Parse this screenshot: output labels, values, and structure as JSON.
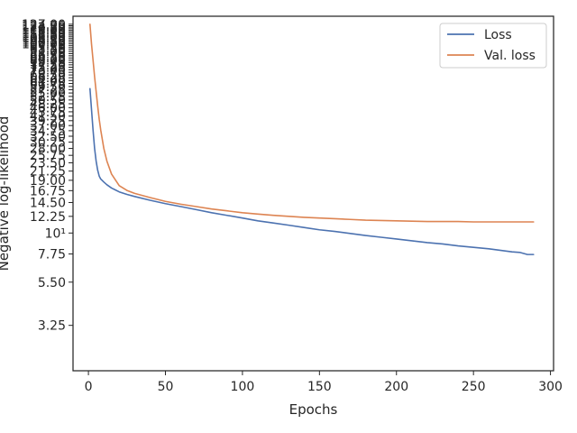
{
  "chart_data": {
    "type": "line",
    "title": "",
    "xlabel": "Epochs",
    "ylabel": "Negative log-likelihood",
    "xlim": [
      -10,
      302
    ],
    "ylim": [
      1.87,
      140
    ],
    "yscale": "log",
    "grid": false,
    "legend_position": "top-right",
    "x_ticks": [
      0,
      50,
      100,
      150,
      200,
      250,
      300
    ],
    "x_tick_labels": [
      "0",
      "50",
      "100",
      "150",
      "200",
      "250",
      "300"
    ],
    "y_ticks": [
      3.25,
      5.5,
      7.75,
      10,
      12.25,
      14.5,
      16.75,
      19.0,
      21.25,
      23.5,
      25.75,
      28.0,
      30.25,
      32.5,
      34.75,
      37.0,
      39.25,
      41.5,
      43.75,
      46.0,
      48.25,
      50.5,
      52.75,
      55.0,
      57.25,
      59.5,
      61.75,
      64.0,
      66.25,
      68.5,
      70.75,
      73.0,
      75.25,
      77.5,
      79.75,
      82.0,
      84.25,
      86.5,
      88.75,
      91.0,
      93.25,
      95.5,
      97.75,
      100.0,
      102.25,
      104.5,
      106.75,
      109.0,
      111.25,
      113.5,
      115.75,
      118.0,
      120.25,
      122.5,
      124.75,
      127.0
    ],
    "y_tick_labels": [
      "3.25",
      "5.50",
      "7.75",
      "10¹",
      "12.25",
      "14.50",
      "16.75",
      "19.00",
      "21.25",
      "23.50",
      "25.75",
      "28.00",
      "30.25",
      "32.50",
      "34.75",
      "37.00",
      "39.25",
      "41.50",
      "43.75",
      "46.00",
      "48.25",
      "50.50",
      "52.75",
      "55.00",
      "57.25",
      "59.50",
      "61.75",
      "64.00",
      "66.25",
      "68.50",
      "70.75",
      "73.00",
      "75.25",
      "77.50",
      "79.75",
      "82.00",
      "84.25",
      "86.50",
      "88.75",
      "91.00",
      "93.25",
      "95.50",
      "97.75",
      "100.00",
      "102.25",
      "104.50",
      "106.75",
      "109.00",
      "111.25",
      "113.50",
      "115.75",
      "118.00",
      "120.25",
      "122.50",
      "124.75",
      "127.00"
    ],
    "series": [
      {
        "name": "Loss",
        "color": "#4c72b0",
        "x": [
          1,
          2,
          3,
          4,
          5,
          6,
          7,
          8,
          10,
          12,
          15,
          20,
          25,
          30,
          40,
          50,
          60,
          70,
          80,
          90,
          100,
          110,
          120,
          130,
          140,
          150,
          160,
          170,
          180,
          190,
          200,
          210,
          220,
          230,
          240,
          250,
          260,
          270,
          275,
          280,
          285,
          289
        ],
        "y": [
          58,
          45,
          35,
          28,
          24,
          21.5,
          20,
          19.3,
          18.6,
          18.0,
          17.3,
          16.5,
          16.0,
          15.6,
          14.9,
          14.3,
          13.8,
          13.3,
          12.8,
          12.4,
          12.0,
          11.6,
          11.3,
          11.0,
          10.7,
          10.4,
          10.2,
          9.95,
          9.7,
          9.5,
          9.3,
          9.1,
          8.9,
          8.75,
          8.55,
          8.4,
          8.25,
          8.05,
          7.95,
          7.9,
          7.7,
          7.7
        ]
      },
      {
        "name": "Val. loss",
        "color": "#dd8452",
        "x": [
          1,
          2,
          3,
          4,
          5,
          6,
          7,
          8,
          10,
          12,
          15,
          20,
          25,
          30,
          40,
          50,
          60,
          70,
          80,
          90,
          100,
          110,
          120,
          130,
          140,
          150,
          160,
          170,
          180,
          190,
          200,
          210,
          220,
          230,
          240,
          250,
          260,
          270,
          280,
          289
        ],
        "y": [
          127,
          100,
          82,
          67,
          56,
          47,
          40,
          35,
          28,
          24,
          20.5,
          17.8,
          16.8,
          16.2,
          15.4,
          14.7,
          14.2,
          13.8,
          13.4,
          13.1,
          12.8,
          12.6,
          12.4,
          12.25,
          12.1,
          12.0,
          11.9,
          11.8,
          11.7,
          11.65,
          11.6,
          11.55,
          11.5,
          11.5,
          11.5,
          11.45,
          11.45,
          11.45,
          11.45,
          11.45
        ]
      }
    ]
  }
}
